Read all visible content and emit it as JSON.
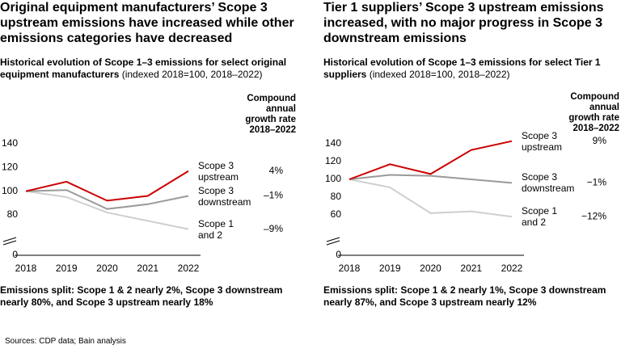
{
  "chart_data": [
    {
      "type": "line",
      "title": "Original equipment manufacturers’ Scope 3 upstream emissions have increased while other emissions categories have decreased",
      "subtitle": "Historical evolution of Scope 1–3 emissions for select original equipment manufacturers",
      "subtitle_note": "(indexed 2018=100, 2018–2022)",
      "cagr_header": "Compound annual growth rate 2018–2022",
      "categories": [
        "2018",
        "2019",
        "2020",
        "2021",
        "2022"
      ],
      "series": [
        {
          "name": "Scope 3 upstream",
          "color": "#cc0000",
          "values": [
            100,
            108,
            92,
            96,
            117
          ],
          "cagr": "4%"
        },
        {
          "name": "Scope 3 downstream",
          "color": "#9a9a9a",
          "values": [
            100,
            101,
            85,
            89,
            96
          ],
          "cagr": "–1%"
        },
        {
          "name": "Scope 1 and 2",
          "color": "#cfcfcf",
          "values": [
            100,
            95,
            82,
            75,
            68
          ],
          "cagr": "–9%"
        }
      ],
      "ylim": [
        0,
        140
      ],
      "yticks": [
        0,
        80,
        100,
        120,
        140
      ],
      "axis_break": true,
      "grid": false,
      "note": "Emissions split: Scope 1 & 2 nearly 2%, Scope 3 downstream nearly 80%, and Scope 3 upstream nearly 18%"
    },
    {
      "type": "line",
      "title": "Tier 1 suppliers’ Scope 3 upstream emissions increased, with no major progress in Scope 3 downstream emissions",
      "subtitle": "Historical evolution of Scope 1–3 emissions for select Tier 1 suppliers",
      "subtitle_note": "(indexed 2018=100, 2018–2022)",
      "cagr_header": "Compound annual growth rate 2018–2022",
      "categories": [
        "2018",
        "2019",
        "2020",
        "2021",
        "2022"
      ],
      "series": [
        {
          "name": "Scope 3 upstream",
          "color": "#cc0000",
          "values": [
            100,
            117,
            106,
            133,
            143
          ],
          "cagr": "9%"
        },
        {
          "name": "Scope 3 downstream",
          "color": "#9a9a9a",
          "values": [
            100,
            105,
            104,
            100,
            96
          ],
          "cagr": "−1%"
        },
        {
          "name": "Scope 1 and 2",
          "color": "#cfcfcf",
          "values": [
            100,
            91,
            62,
            64,
            58
          ],
          "cagr": "−12%"
        }
      ],
      "ylim": [
        0,
        140
      ],
      "yticks": [
        0,
        60,
        80,
        100,
        120,
        140
      ],
      "axis_break": true,
      "grid": false,
      "note": "Emissions split: Scope 1 & 2 nearly 1%, Scope 3 downstream nearly 87%, and Scope 3 upstream nearly 12%"
    }
  ],
  "source": "Sources: CDP data; Bain analysis"
}
